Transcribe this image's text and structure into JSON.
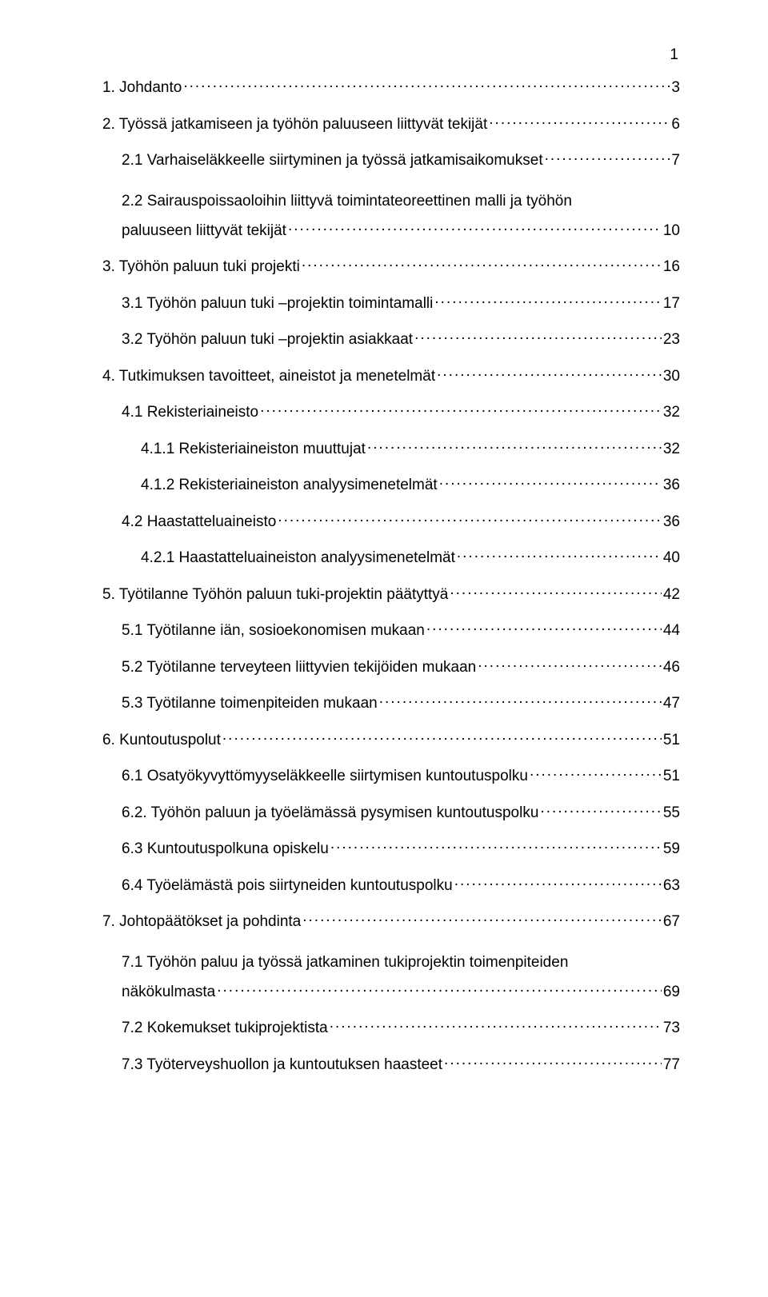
{
  "page_number": "1",
  "colors": {
    "text": "#000000",
    "background": "#ffffff"
  },
  "typography": {
    "font_family": "Arial",
    "font_size_pt": 14,
    "line_spacing": 2.0
  },
  "toc": [
    {
      "level": 0,
      "label": "1. Johdanto",
      "page": "3"
    },
    {
      "level": 0,
      "label": "2. Työssä jatkamiseen ja työhön paluuseen liittyvät tekijät",
      "page": "6"
    },
    {
      "level": 1,
      "label": "2.1 Varhaiseläkkeelle siirtyminen ja työssä jatkamisaikomukset",
      "page": "7"
    },
    {
      "level": 1,
      "multiline": true,
      "line1": "2.2 Sairauspoissaoloihin liittyvä toimintateoreettinen malli ja työhön",
      "line2": "paluuseen liittyvät tekijät",
      "page": "10"
    },
    {
      "level": 0,
      "label": "3. Työhön paluun tuki projekti",
      "page": "16"
    },
    {
      "level": 1,
      "label": "3.1 Työhön paluun tuki –projektin toimintamalli",
      "page": "17"
    },
    {
      "level": 1,
      "label": "3.2 Työhön paluun tuki –projektin asiakkaat",
      "page": "23"
    },
    {
      "level": 0,
      "label": "4. Tutkimuksen tavoitteet, aineistot ja menetelmät",
      "page": "30"
    },
    {
      "level": 1,
      "label": "4.1 Rekisteriaineisto",
      "page": "32"
    },
    {
      "level": 2,
      "label": "4.1.1 Rekisteriaineiston muuttujat",
      "page": "32"
    },
    {
      "level": 2,
      "label": "4.1.2 Rekisteriaineiston analyysimenetelmät",
      "page": "36"
    },
    {
      "level": 1,
      "label": "4.2 Haastatteluaineisto",
      "page": "36"
    },
    {
      "level": 2,
      "label": "4.2.1 Haastatteluaineiston analyysimenetelmät",
      "page": "40"
    },
    {
      "level": 0,
      "label": "5. Työtilanne Työhön paluun tuki-projektin päätyttyä",
      "page": "42"
    },
    {
      "level": 1,
      "label": "5.1 Työtilanne iän, sosioekonomisen mukaan",
      "page": "44"
    },
    {
      "level": 1,
      "label": "5.2 Työtilanne terveyteen liittyvien tekijöiden mukaan",
      "page": "46"
    },
    {
      "level": 1,
      "label": "5.3 Työtilanne toimenpiteiden mukaan",
      "page": "47"
    },
    {
      "level": 0,
      "label": "6. Kuntoutuspolut",
      "page": "51"
    },
    {
      "level": 1,
      "label": "6.1 Osatyökyvyttömyyseläkkeelle siirtymisen kuntoutuspolku",
      "page": "51"
    },
    {
      "level": 1,
      "label": "6.2. Työhön paluun ja työelämässä pysymisen kuntoutuspolku",
      "page": "55"
    },
    {
      "level": 1,
      "label": "6.3 Kuntoutuspolkuna opiskelu",
      "page": "59"
    },
    {
      "level": 1,
      "label": "6.4 Työelämästä pois siirtyneiden kuntoutuspolku",
      "page": "63"
    },
    {
      "level": 0,
      "label": "7. Johtopäätökset ja pohdinta",
      "page": "67"
    },
    {
      "level": 1,
      "multiline": true,
      "line1": "7.1 Työhön paluu ja työssä jatkaminen tukiprojektin toimenpiteiden",
      "line2": "näkökulmasta",
      "page": "69"
    },
    {
      "level": 1,
      "label": "7.2 Kokemukset tukiprojektista",
      "page": "73"
    },
    {
      "level": 1,
      "label": "7.3 Työterveyshuollon ja kuntoutuksen haasteet",
      "page": "77"
    }
  ]
}
